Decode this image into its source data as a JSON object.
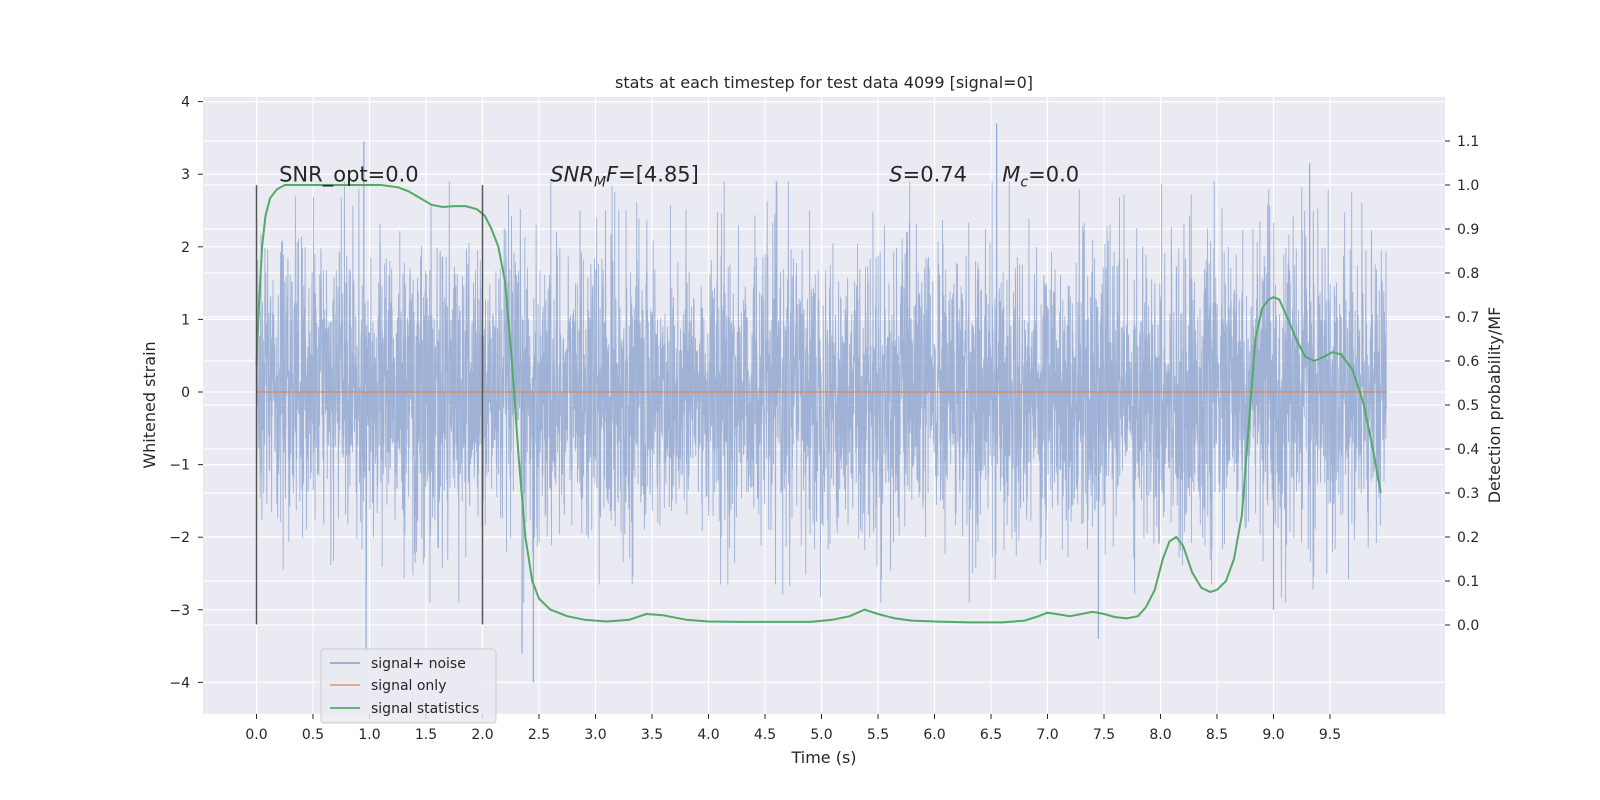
{
  "chart_data": {
    "type": "line",
    "title": "stats at each timestep for test data 4099 [signal=0]",
    "xlabel": "Time (s)",
    "ylabel": "Whitened strain",
    "y2label": "Detection probability/MF",
    "xlim": [
      -0.49,
      10.5
    ],
    "ylim": [
      -4.4,
      4.1
    ],
    "y2lim": [
      -0.195,
      1.195
    ],
    "x_ticks": [
      "0.0",
      "0.5",
      "1.0",
      "1.5",
      "2.0",
      "2.5",
      "3.0",
      "3.5",
      "4.0",
      "4.5",
      "5.0",
      "5.5",
      "6.0",
      "6.5",
      "7.0",
      "7.5",
      "8.0",
      "8.5",
      "9.0",
      "9.5"
    ],
    "y_ticks": [
      "4",
      "3",
      "2",
      "1",
      "0",
      "−1",
      "−2",
      "−3",
      "−4"
    ],
    "y2_ticks": [
      "1.1",
      "1.0",
      "0.9",
      "0.8",
      "0.7",
      "0.6",
      "0.5",
      "0.4",
      "0.3",
      "0.2",
      "0.1",
      "0.0"
    ],
    "grid": true,
    "legend_position": "lower-left",
    "annotations": [
      {
        "x": 0.2,
        "y": 2.9,
        "pre": "SNR_opt=0.0",
        "italic": "",
        "sub": "",
        "post": ""
      },
      {
        "x": 2.6,
        "y": 2.9,
        "pre": "",
        "italic": "SNR",
        "sub": "M",
        "italic2": "F",
        "post": "=[4.85]"
      },
      {
        "x": 5.6,
        "y": 2.9,
        "pre": "",
        "italic": "S",
        "sub": "",
        "post": "=0.74"
      },
      {
        "x": 6.6,
        "y": 2.9,
        "pre": "",
        "italic": "M",
        "sub": "c",
        "post": "=0.0"
      }
    ],
    "vlines": [
      {
        "x": 0.0,
        "y0": -3.2,
        "y1": 2.85
      },
      {
        "x": 2.0,
        "y0": -3.2,
        "y1": 2.85
      }
    ],
    "series": [
      {
        "name": "signal+ noise",
        "color": "#92a8d1",
        "axis": "left",
        "x_range": [
          0.0,
          10.0
        ],
        "sample_rate": 2048,
        "envelope_std": 1.0,
        "notable_extremes": [
          {
            "x": 0.95,
            "y": 3.45
          },
          {
            "x": 6.55,
            "y": 3.7
          },
          {
            "x": 2.35,
            "y": -3.6
          },
          {
            "x": 2.45,
            "y": -4.0
          },
          {
            "x": 0.97,
            "y": -3.6
          },
          {
            "x": 7.45,
            "y": -3.4
          },
          {
            "x": 9.32,
            "y": 3.15
          },
          {
            "x": 9.0,
            "y": -3.0
          }
        ]
      },
      {
        "name": "signal only",
        "color": "#dd8452",
        "axis": "left",
        "x": [
          0.0,
          10.0
        ],
        "y": [
          0.0,
          0.0
        ]
      },
      {
        "name": "signal statistics",
        "color": "#55a868",
        "axis": "right",
        "x": [
          0.0,
          0.02,
          0.05,
          0.08,
          0.12,
          0.18,
          0.25,
          0.35,
          0.5,
          0.7,
          0.9,
          1.1,
          1.25,
          1.35,
          1.45,
          1.55,
          1.65,
          1.75,
          1.85,
          1.95,
          2.02,
          2.08,
          2.14,
          2.2,
          2.26,
          2.32,
          2.38,
          2.44,
          2.5,
          2.6,
          2.75,
          2.9,
          3.1,
          3.3,
          3.45,
          3.6,
          3.8,
          4.0,
          4.3,
          4.6,
          4.9,
          5.1,
          5.25,
          5.38,
          5.5,
          5.65,
          5.8,
          6.0,
          6.3,
          6.6,
          6.8,
          6.92,
          7.0,
          7.1,
          7.2,
          7.3,
          7.4,
          7.5,
          7.6,
          7.7,
          7.8,
          7.87,
          7.95,
          8.02,
          8.08,
          8.14,
          8.2,
          8.28,
          8.36,
          8.44,
          8.5,
          8.58,
          8.65,
          8.72,
          8.78,
          8.84,
          8.9,
          8.96,
          9.0,
          9.05,
          9.12,
          9.2,
          9.28,
          9.36,
          9.45,
          9.52,
          9.6,
          9.7,
          9.8,
          9.88,
          9.95
        ],
        "y": [
          0.59,
          0.72,
          0.86,
          0.93,
          0.97,
          0.99,
          1.0,
          1.0,
          1.0,
          1.0,
          1.0,
          1.0,
          0.995,
          0.985,
          0.97,
          0.955,
          0.95,
          0.952,
          0.952,
          0.945,
          0.93,
          0.9,
          0.86,
          0.78,
          0.6,
          0.38,
          0.2,
          0.1,
          0.06,
          0.035,
          0.02,
          0.012,
          0.008,
          0.012,
          0.025,
          0.022,
          0.012,
          0.008,
          0.007,
          0.007,
          0.007,
          0.012,
          0.02,
          0.035,
          0.025,
          0.015,
          0.01,
          0.008,
          0.006,
          0.006,
          0.01,
          0.02,
          0.028,
          0.024,
          0.02,
          0.025,
          0.03,
          0.025,
          0.018,
          0.015,
          0.02,
          0.04,
          0.08,
          0.15,
          0.19,
          0.2,
          0.18,
          0.12,
          0.085,
          0.075,
          0.08,
          0.1,
          0.15,
          0.25,
          0.45,
          0.65,
          0.72,
          0.74,
          0.745,
          0.74,
          0.7,
          0.65,
          0.61,
          0.6,
          0.61,
          0.62,
          0.615,
          0.58,
          0.5,
          0.4,
          0.3
        ]
      }
    ]
  }
}
